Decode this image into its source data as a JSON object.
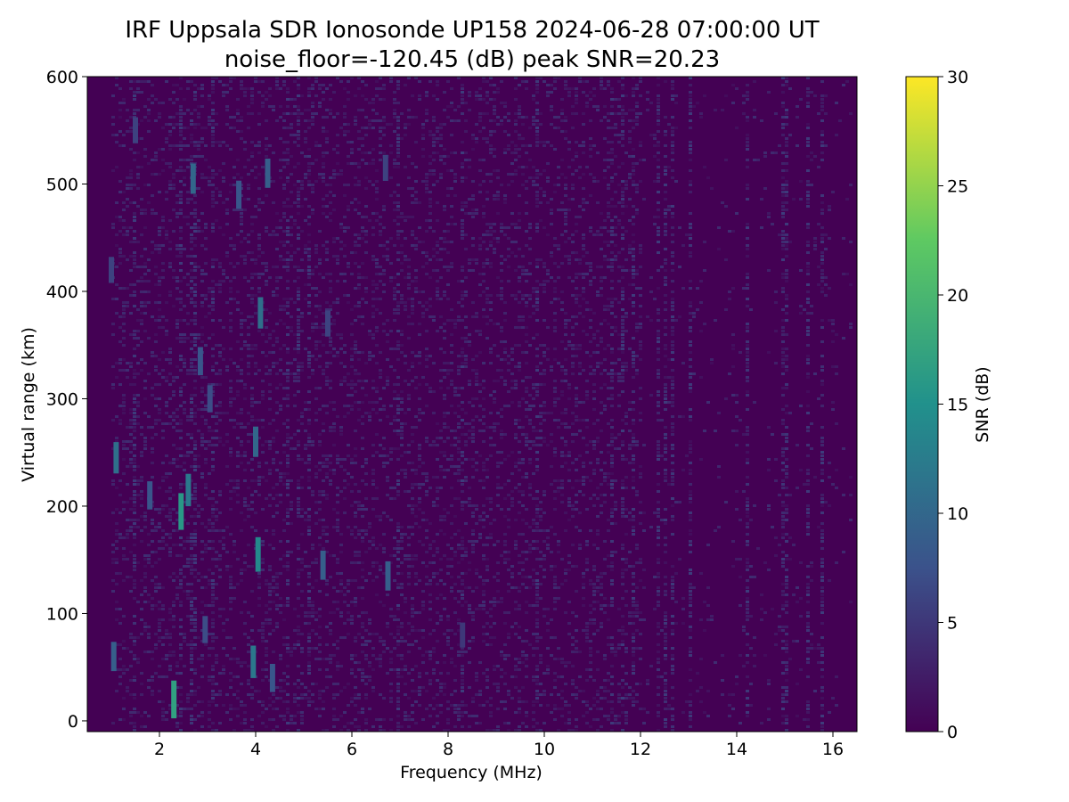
{
  "chart_data": {
    "type": "heatmap",
    "title": "IRF Uppsala SDR Ionosonde UP158 2024-06-28 07:00:00  UT",
    "subtitle": "noise_floor=-120.45 (dB) peak SNR=20.23",
    "xlabel": "Frequency (MHz)",
    "ylabel": "Virtual range (km)",
    "colorbar_label": "SNR (dB)",
    "xlim": [
      0.5,
      16.5
    ],
    "ylim": [
      -10,
      600
    ],
    "x_ticks": [
      2,
      4,
      6,
      8,
      10,
      12,
      14,
      16
    ],
    "y_ticks": [
      0,
      100,
      200,
      300,
      400,
      500,
      600
    ],
    "colorbar_range": [
      0,
      30
    ],
    "colorbar_ticks": [
      0,
      5,
      10,
      15,
      20,
      25,
      30
    ],
    "colormap": "viridis",
    "colormap_stops": [
      "#440154",
      "#3b528b",
      "#21918c",
      "#5ec962",
      "#fde725"
    ],
    "background_snr": 1,
    "data_start_mhz": 1.0,
    "high_band_fade_mhz": 12.0,
    "echo_spots": [
      {
        "f": 1.05,
        "r": 60,
        "snr": 9
      },
      {
        "f": 1.1,
        "r": 245,
        "snr": 11
      },
      {
        "f": 1.0,
        "r": 420,
        "snr": 6
      },
      {
        "f": 1.5,
        "r": 550,
        "snr": 6
      },
      {
        "f": 1.8,
        "r": 210,
        "snr": 8
      },
      {
        "f": 2.3,
        "r": 20,
        "snr": 17
      },
      {
        "f": 2.45,
        "r": 195,
        "snr": 16
      },
      {
        "f": 2.6,
        "r": 215,
        "snr": 12
      },
      {
        "f": 2.7,
        "r": 505,
        "snr": 10
      },
      {
        "f": 2.85,
        "r": 335,
        "snr": 8
      },
      {
        "f": 2.95,
        "r": 85,
        "snr": 7
      },
      {
        "f": 3.05,
        "r": 300,
        "snr": 7
      },
      {
        "f": 3.65,
        "r": 490,
        "snr": 8
      },
      {
        "f": 3.95,
        "r": 55,
        "snr": 12
      },
      {
        "f": 4.0,
        "r": 260,
        "snr": 10
      },
      {
        "f": 4.05,
        "r": 155,
        "snr": 14
      },
      {
        "f": 4.1,
        "r": 380,
        "snr": 11
      },
      {
        "f": 4.25,
        "r": 510,
        "snr": 9
      },
      {
        "f": 4.35,
        "r": 40,
        "snr": 8
      },
      {
        "f": 5.4,
        "r": 145,
        "snr": 9
      },
      {
        "f": 5.5,
        "r": 370,
        "snr": 6
      },
      {
        "f": 6.75,
        "r": 135,
        "snr": 9
      },
      {
        "f": 6.7,
        "r": 515,
        "snr": 6
      },
      {
        "f": 8.3,
        "r": 80,
        "snr": 5
      }
    ]
  }
}
